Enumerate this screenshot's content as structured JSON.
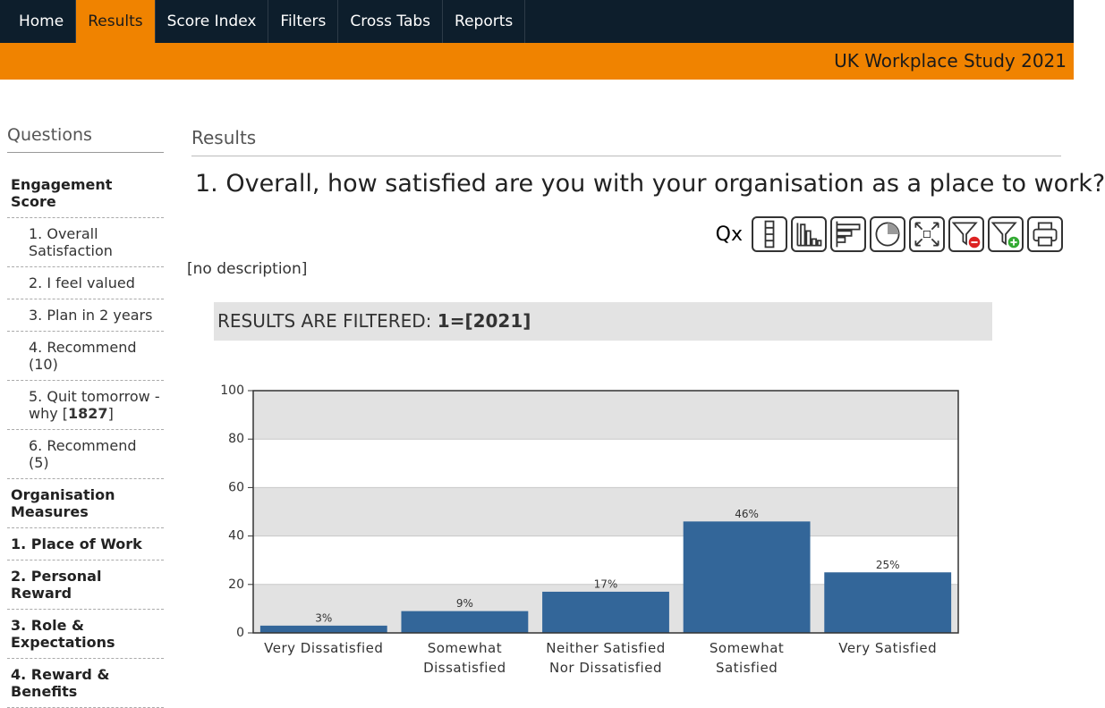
{
  "nav": {
    "items": [
      "Home",
      "Results",
      "Score Index",
      "Filters",
      "Cross Tabs",
      "Reports"
    ]
  },
  "banner": "UK Workplace Study 2021",
  "sidebar": {
    "heading": "Questions",
    "groups": [
      {
        "title": "Engagement Score",
        "items": [
          "1. Overall Satisfaction",
          "2. I feel valued",
          "3. Plan in 2 years",
          "4. Recommend (10)",
          {
            "text": "5. Quit tomorrow - why [",
            "count": "1827",
            "close": "]"
          },
          "6. Recommend (5)"
        ]
      },
      {
        "title": "Organisation Measures"
      },
      {
        "title": "1. Place of Work"
      },
      {
        "title": "2. Personal Reward"
      },
      {
        "title": "3. Role & Expectations"
      },
      {
        "title": "4. Reward & Benefits"
      }
    ]
  },
  "main": {
    "heading": "Results",
    "question": "1. Overall, how satisfied are you with your organisation as a place to work?",
    "toolbar_label": "Qx",
    "description": "[no description]",
    "filter": {
      "label": "RESULTS ARE FILTERED: ",
      "value": "1=[2021]"
    }
  },
  "chart_data": {
    "type": "bar",
    "categories": [
      "Very Dissatisfied",
      "Somewhat Dissatisfied",
      "Neither Satisfied Nor Dissatisfied",
      "Somewhat Satisfied",
      "Very Satisfied"
    ],
    "values": [
      3,
      9,
      17,
      46,
      25
    ],
    "value_labels": [
      "3%",
      "9%",
      "17%",
      "46%",
      "25%"
    ],
    "color": "#336699",
    "ylim": [
      0,
      100
    ],
    "yticks": [
      0,
      20,
      40,
      60,
      80,
      100
    ],
    "grid": true
  }
}
